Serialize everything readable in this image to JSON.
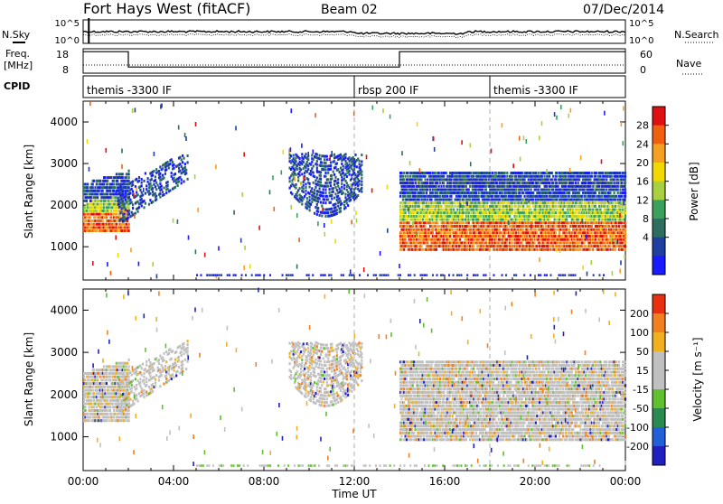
{
  "header": {
    "station": "Fort Hays West (fitACF)",
    "beam": "Beam 02",
    "date": "07/Dec/2014"
  },
  "noise": {
    "left_label": "N.Sky",
    "right_label": "N.Search",
    "left_ticks": [
      "10^5",
      "10^0"
    ],
    "right_ticks": [
      "10^5",
      "10^0"
    ]
  },
  "freq": {
    "left_label_line1": "Freq.",
    "left_label_line2": "[MHz]",
    "left_ticks": [
      "18",
      "8"
    ],
    "right_label": "Nave",
    "right_ticks": [
      "60",
      "0"
    ],
    "steps_mhz": [
      [
        0,
        17.5
      ],
      [
        2.0,
        17.5
      ],
      [
        2.0,
        10.4
      ],
      [
        14.0,
        10.4
      ],
      [
        14.0,
        17.5
      ],
      [
        24.0,
        17.5
      ]
    ]
  },
  "cpid": {
    "label": "CPID",
    "segments": [
      {
        "start_hr": 0,
        "end_hr": 12,
        "name": "themis -3300 IF"
      },
      {
        "start_hr": 12,
        "end_hr": 18,
        "name": "rbsp 200 IF"
      },
      {
        "start_hr": 18,
        "end_hr": 24,
        "name": "themis -3300 IF"
      }
    ]
  },
  "chart_data": [
    {
      "type": "heatmap",
      "title": "Power",
      "ylabel": "Slant Range [km]",
      "colorbar_label": "Power [dB]",
      "colorbar_ticks": [
        "28",
        "24",
        "20",
        "16",
        "12",
        "8",
        "4"
      ],
      "colors": [
        "#1a1aff",
        "#1f3fa3",
        "#2e6e5e",
        "#3aa05a",
        "#a8d040",
        "#f0d800",
        "#f5a020",
        "#f06010",
        "#e01010"
      ],
      "yticks": [
        "1000",
        "2000",
        "3000",
        "4000"
      ],
      "ylim": [
        200,
        4500
      ],
      "xlim": [
        0,
        24
      ],
      "bands": [
        {
          "t0": 0.0,
          "t1": 2.0,
          "rlo": 1350,
          "rhi": 2500,
          "rpeak": 1600,
          "peak_rise": 900,
          "kind": "strong"
        },
        {
          "t0": 1.5,
          "t1": 4.6,
          "rlo": 1500,
          "rhi": 2400,
          "rpeak": 1700,
          "peak_rise": 1100,
          "kind": "weak"
        },
        {
          "t0": 9.1,
          "t1": 12.3,
          "rlo": 1700,
          "rhi": 3200,
          "rpeak": 2000,
          "peak_rise": 1100,
          "kind": "medium"
        },
        {
          "t0": 14.0,
          "t1": 24.0,
          "rlo": 900,
          "rhi": 2800,
          "rpeak": 1200,
          "peak_rise": 300,
          "kind": "strong"
        }
      ]
    },
    {
      "type": "heatmap",
      "title": "Velocity",
      "ylabel": "Slant Range [km]",
      "colorbar_label": "Velocity [m s⁻¹]",
      "colorbar_ticks": [
        "200",
        "100",
        "50",
        "15",
        "-15",
        "-50",
        "-100",
        "-200"
      ],
      "colors": [
        "#2020c0",
        "#2060d8",
        "#2a8a50",
        "#60c030",
        "#c0c0c0",
        "#c0c0c0",
        "#f0b020",
        "#f08020",
        "#e83010"
      ],
      "yticks": [
        "1000",
        "2000",
        "3000",
        "4000"
      ],
      "ylim": [
        200,
        4500
      ],
      "xlim": [
        0,
        24
      ],
      "xticks": [
        "00:00",
        "04:00",
        "08:00",
        "12:00",
        "16:00",
        "20:00",
        "00:00"
      ],
      "xlabel": "Time UT"
    }
  ]
}
